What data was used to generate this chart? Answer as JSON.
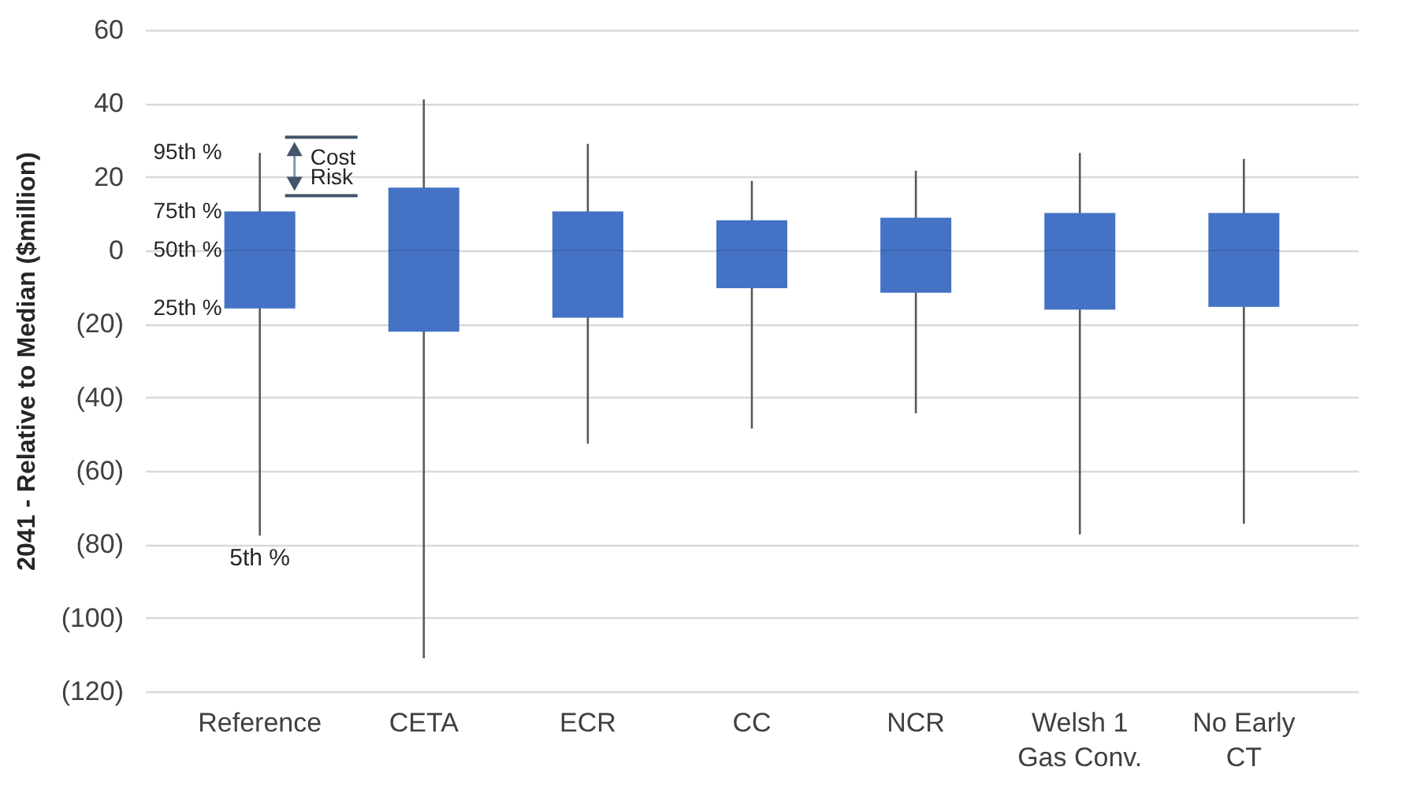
{
  "chart_data": {
    "type": "box",
    "ylabel": "2041 - Relative to Median ($million)",
    "categories": [
      "Reference",
      "CETA",
      "ECR",
      "CC",
      "NCR",
      "Welsh 1\nGas Conv.",
      "No Early\nCT"
    ],
    "series": [
      {
        "color": "#4472c4",
        "boxes": [
          {
            "low": -77.6,
            "q1": -15.8,
            "median": 0,
            "q3": 10.6,
            "high": 26.5
          },
          {
            "low": -111,
            "q1": -22.1,
            "median": 0,
            "q3": 17.1,
            "high": 41.1
          },
          {
            "low": -52.6,
            "q1": -18.3,
            "median": 0,
            "q3": 10.6,
            "high": 29
          },
          {
            "low": -48.5,
            "q1": -10.3,
            "median": 0,
            "q3": 8.2,
            "high": 18.9
          },
          {
            "low": -44.3,
            "q1": -11.5,
            "median": 0,
            "q3": 8.9,
            "high": 21.7
          },
          {
            "low": -77.3,
            "q1": -16.1,
            "median": 0,
            "q3": 10.2,
            "high": 26.5
          },
          {
            "low": -74.4,
            "q1": -15.4,
            "median": 0,
            "q3": 10.2,
            "high": 24.9
          }
        ]
      }
    ],
    "ylim": [
      -120,
      60
    ],
    "yticks": [
      {
        "value": -120,
        "label": "(120)"
      },
      {
        "value": -100,
        "label": "(100)"
      },
      {
        "value": -80,
        "label": "(80)"
      },
      {
        "value": -60,
        "label": "(60)"
      },
      {
        "value": -40,
        "label": "(40)"
      },
      {
        "value": -20,
        "label": "(20)"
      },
      0,
      20,
      40,
      60
    ],
    "grid": "y",
    "annotations": [
      {
        "text": "95th %",
        "x": "Reference",
        "y": 26.5
      },
      {
        "text": "75th %",
        "x": "Reference",
        "y": 10.6
      },
      {
        "text": "50th %",
        "x": "Reference",
        "y": 0
      },
      {
        "text": "25th %",
        "x": "Reference",
        "y": -15.8
      },
      {
        "text": "5th %",
        "x": "Reference",
        "y": -77.6
      },
      "Cost",
      "Risk"
    ]
  }
}
